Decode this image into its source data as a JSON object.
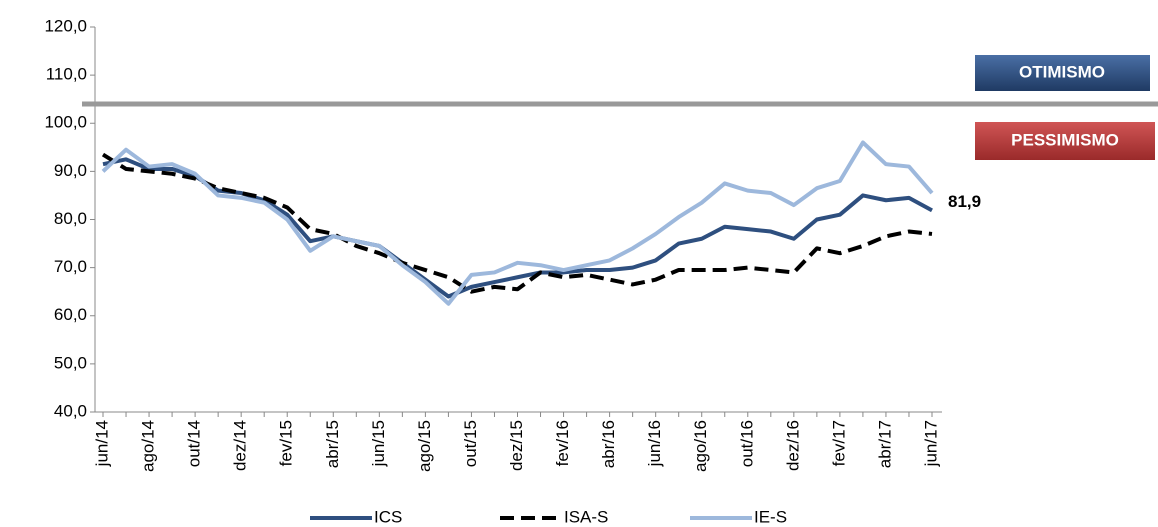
{
  "chart_data": {
    "type": "line",
    "categories": [
      "jun/14",
      null,
      "ago/14",
      null,
      "out/14",
      null,
      "dez/14",
      null,
      "fev/15",
      null,
      "abr/15",
      null,
      "jun/15",
      null,
      "ago/15",
      null,
      "out/15",
      null,
      "dez/15",
      null,
      "fev/16",
      null,
      "abr/16",
      null,
      "jun/16",
      null,
      "ago/16",
      null,
      "out/16",
      null,
      "dez/16",
      null,
      "fev/17",
      null,
      "abr/17",
      null,
      "jun/17"
    ],
    "series": [
      {
        "name": "ICS",
        "color": "#2e4f7f",
        "dash": false,
        "values": [
          91.5,
          92.5,
          90.5,
          90.5,
          89,
          86,
          85.5,
          84,
          81,
          75.5,
          76.5,
          75.5,
          74.5,
          71,
          67.5,
          64,
          66,
          67,
          68,
          69,
          69,
          69.5,
          69.5,
          70,
          71.5,
          75,
          76,
          78.5,
          78,
          77.5,
          76,
          80,
          81,
          85,
          84,
          84.5,
          81.9
        ],
        "value_labels": [
          null,
          null,
          null,
          null,
          null,
          null,
          null,
          null,
          null,
          null,
          null,
          null,
          null,
          null,
          null,
          null,
          null,
          null,
          null,
          null,
          null,
          null,
          null,
          null,
          null,
          null,
          null,
          null,
          null,
          null,
          null,
          null,
          null,
          null,
          null,
          null,
          "81,9"
        ]
      },
      {
        "name": "ISA-S",
        "color": "#000000",
        "dash": true,
        "values": [
          93.5,
          90.5,
          90,
          89.5,
          88.5,
          86.5,
          85.5,
          84.5,
          82.5,
          78,
          77,
          74.5,
          73,
          71,
          69.5,
          68,
          65,
          66,
          65.5,
          69,
          68,
          68.5,
          67.5,
          66.5,
          67.5,
          69.5,
          69.5,
          69.5,
          70,
          69.5,
          69,
          74,
          73,
          74.5,
          76.5,
          77.5,
          77
        ]
      },
      {
        "name": "IE-S",
        "color": "#9db8dc",
        "dash": false,
        "values": [
          90,
          94.5,
          91,
          91.5,
          89.5,
          85,
          84.5,
          83.5,
          80,
          73.5,
          76.5,
          75.5,
          74.5,
          70.5,
          67,
          62.5,
          68.5,
          69,
          71,
          70.5,
          69.5,
          70.5,
          71.5,
          74,
          77,
          80.5,
          83.5,
          87.5,
          86,
          85.5,
          83,
          86.5,
          88,
          96,
          91.5,
          91,
          85.5
        ]
      }
    ],
    "ylim": [
      40,
      120
    ],
    "yticks": [
      {
        "value": 40,
        "label": "40,0"
      },
      {
        "value": 50,
        "label": "50,0"
      },
      {
        "value": 60,
        "label": "60,0"
      },
      {
        "value": 70,
        "label": "70,0"
      },
      {
        "value": 80,
        "label": "80,0"
      },
      {
        "value": 90,
        "label": "90,0"
      },
      {
        "value": 100,
        "label": "100,0"
      },
      {
        "value": 110,
        "label": "110,0"
      },
      {
        "value": 120,
        "label": "120,0"
      }
    ],
    "reference_line": 104,
    "annotations": [
      "OTIMISMO",
      "PESSIMISMO"
    ]
  }
}
